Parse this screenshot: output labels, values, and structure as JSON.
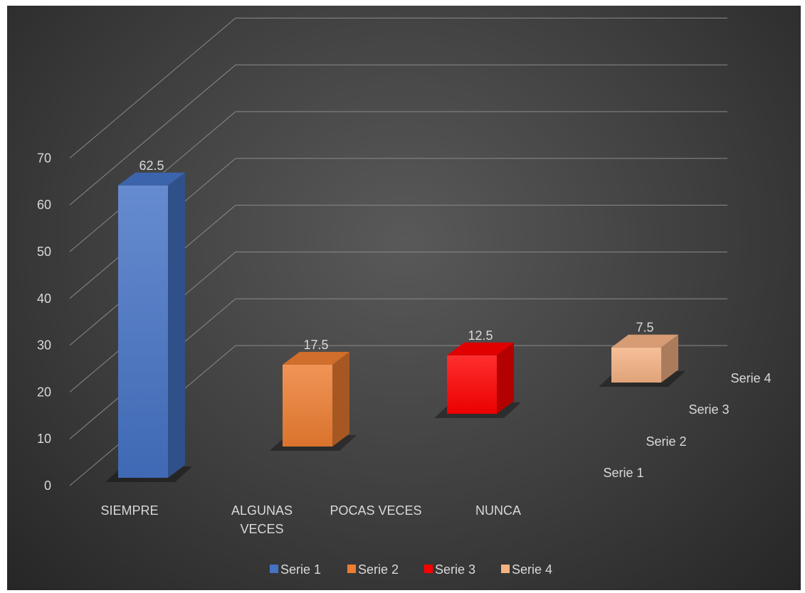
{
  "chart_data": {
    "type": "bar",
    "title": "",
    "xlabel": "",
    "ylabel": "",
    "ylim": [
      0,
      70
    ],
    "yticks": [
      0,
      10,
      20,
      30,
      40,
      50,
      60,
      70
    ],
    "categories": [
      "SIEMPRE",
      "ALGUNAS VECES",
      "POCAS VECES",
      "NUNCA"
    ],
    "depth_axis_labels": [
      "Serie 1",
      "Serie 2",
      "Serie 3",
      "Serie 4"
    ],
    "grid": true,
    "legend_position": "bottom",
    "series": [
      {
        "name": "Serie 1",
        "color": "#4472c4",
        "values": [
          62.5,
          null,
          null,
          null
        ]
      },
      {
        "name": "Serie 2",
        "color": "#ed7d31",
        "values": [
          null,
          17.5,
          null,
          null
        ]
      },
      {
        "name": "Serie 3",
        "color": "#ff0000",
        "values": [
          null,
          null,
          12.5,
          null
        ]
      },
      {
        "name": "Serie 4",
        "color": "#f4b183",
        "values": [
          null,
          null,
          null,
          7.5
        ]
      }
    ],
    "data_labels": [
      "62.5",
      "17.5",
      "12.5",
      "7.5"
    ]
  }
}
